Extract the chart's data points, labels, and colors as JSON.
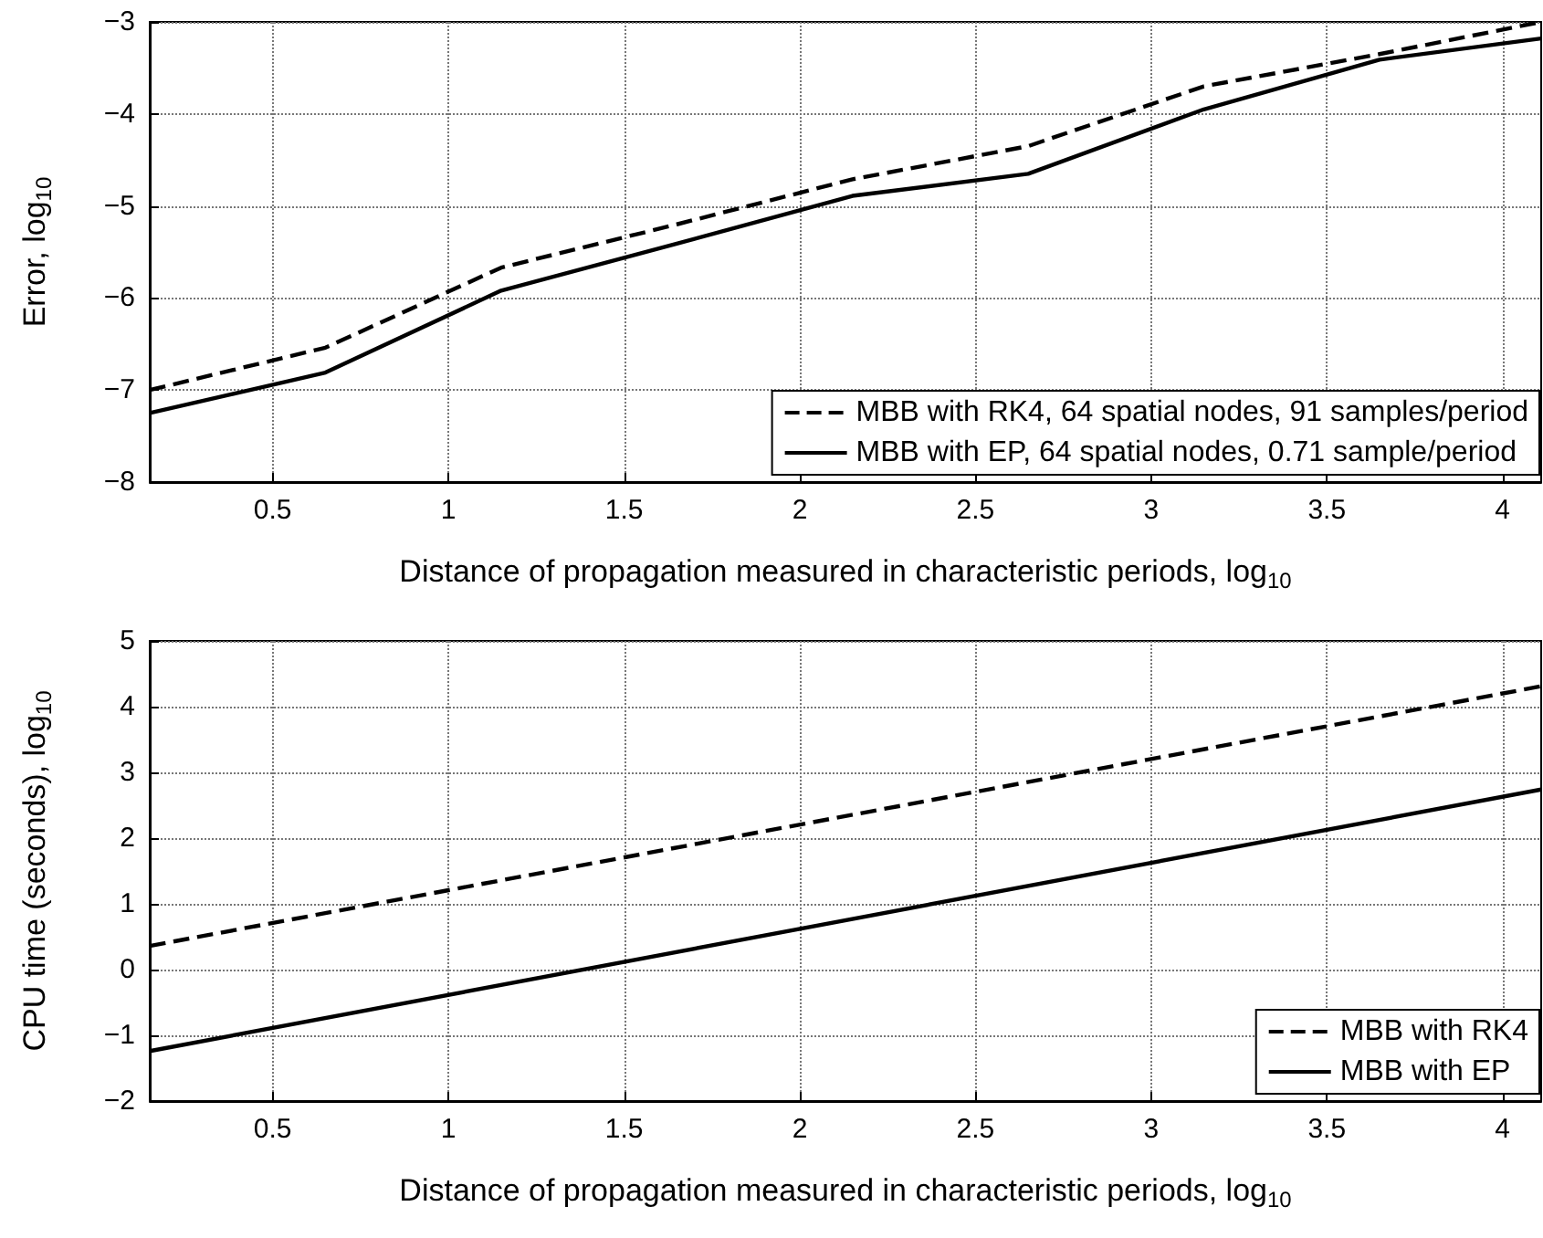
{
  "chart_data": [
    {
      "type": "line",
      "xlabel": "Distance of propagation measured in characteristic periods, log$_{10}$",
      "ylabel": "Error, log$_{10}$",
      "xlim": [
        0.15,
        4.11
      ],
      "ylim": [
        -8,
        -3
      ],
      "xticks": [
        0.5,
        1,
        1.5,
        2,
        2.5,
        3,
        3.5,
        4
      ],
      "yticks": [
        -8,
        -7,
        -6,
        -5,
        -4,
        -3
      ],
      "grid": true,
      "legend": "bottom right",
      "marker": "none",
      "x": [
        0.15,
        0.65,
        1.15,
        1.65,
        2.15,
        2.65,
        3.15,
        3.65,
        4.11
      ],
      "series": [
        {
          "name": "MBB with RK4, 64 spatial nodes, 91 samples/period",
          "color": "#000000",
          "line_style": "dashed",
          "values": [
            -7.0,
            -6.54,
            -5.67,
            -5.2,
            -4.71,
            -4.35,
            -3.7,
            -3.35,
            -3.0
          ]
        },
        {
          "name": "MBB with EP, 64 spatial nodes, 0.71 sample/period",
          "color": "#000000",
          "line_style": "solid",
          "values": [
            -7.25,
            -6.81,
            -5.92,
            -5.41,
            -4.89,
            -4.65,
            -3.95,
            -3.41,
            -3.18
          ]
        }
      ]
    },
    {
      "type": "line",
      "xlabel": "Distance of propagation measured in characteristic periods, log$_{10}$",
      "ylabel": "CPU time (seconds), log$_{10}$",
      "xlim": [
        0.15,
        4.11
      ],
      "ylim": [
        -2,
        5
      ],
      "xticks": [
        0.5,
        1,
        1.5,
        2,
        2.5,
        3,
        3.5,
        4
      ],
      "yticks": [
        -2,
        -1,
        0,
        1,
        2,
        3,
        4,
        5
      ],
      "grid": true,
      "legend": "bottom right",
      "marker": "none",
      "x": [
        0.15,
        4.11
      ],
      "series": [
        {
          "name": "MBB with RK4",
          "color": "#000000",
          "line_style": "dashed",
          "values": [
            0.36,
            4.31
          ]
        },
        {
          "name": "MBB with EP",
          "color": "#000000",
          "line_style": "solid",
          "values": [
            -1.24,
            2.74
          ]
        }
      ]
    }
  ]
}
